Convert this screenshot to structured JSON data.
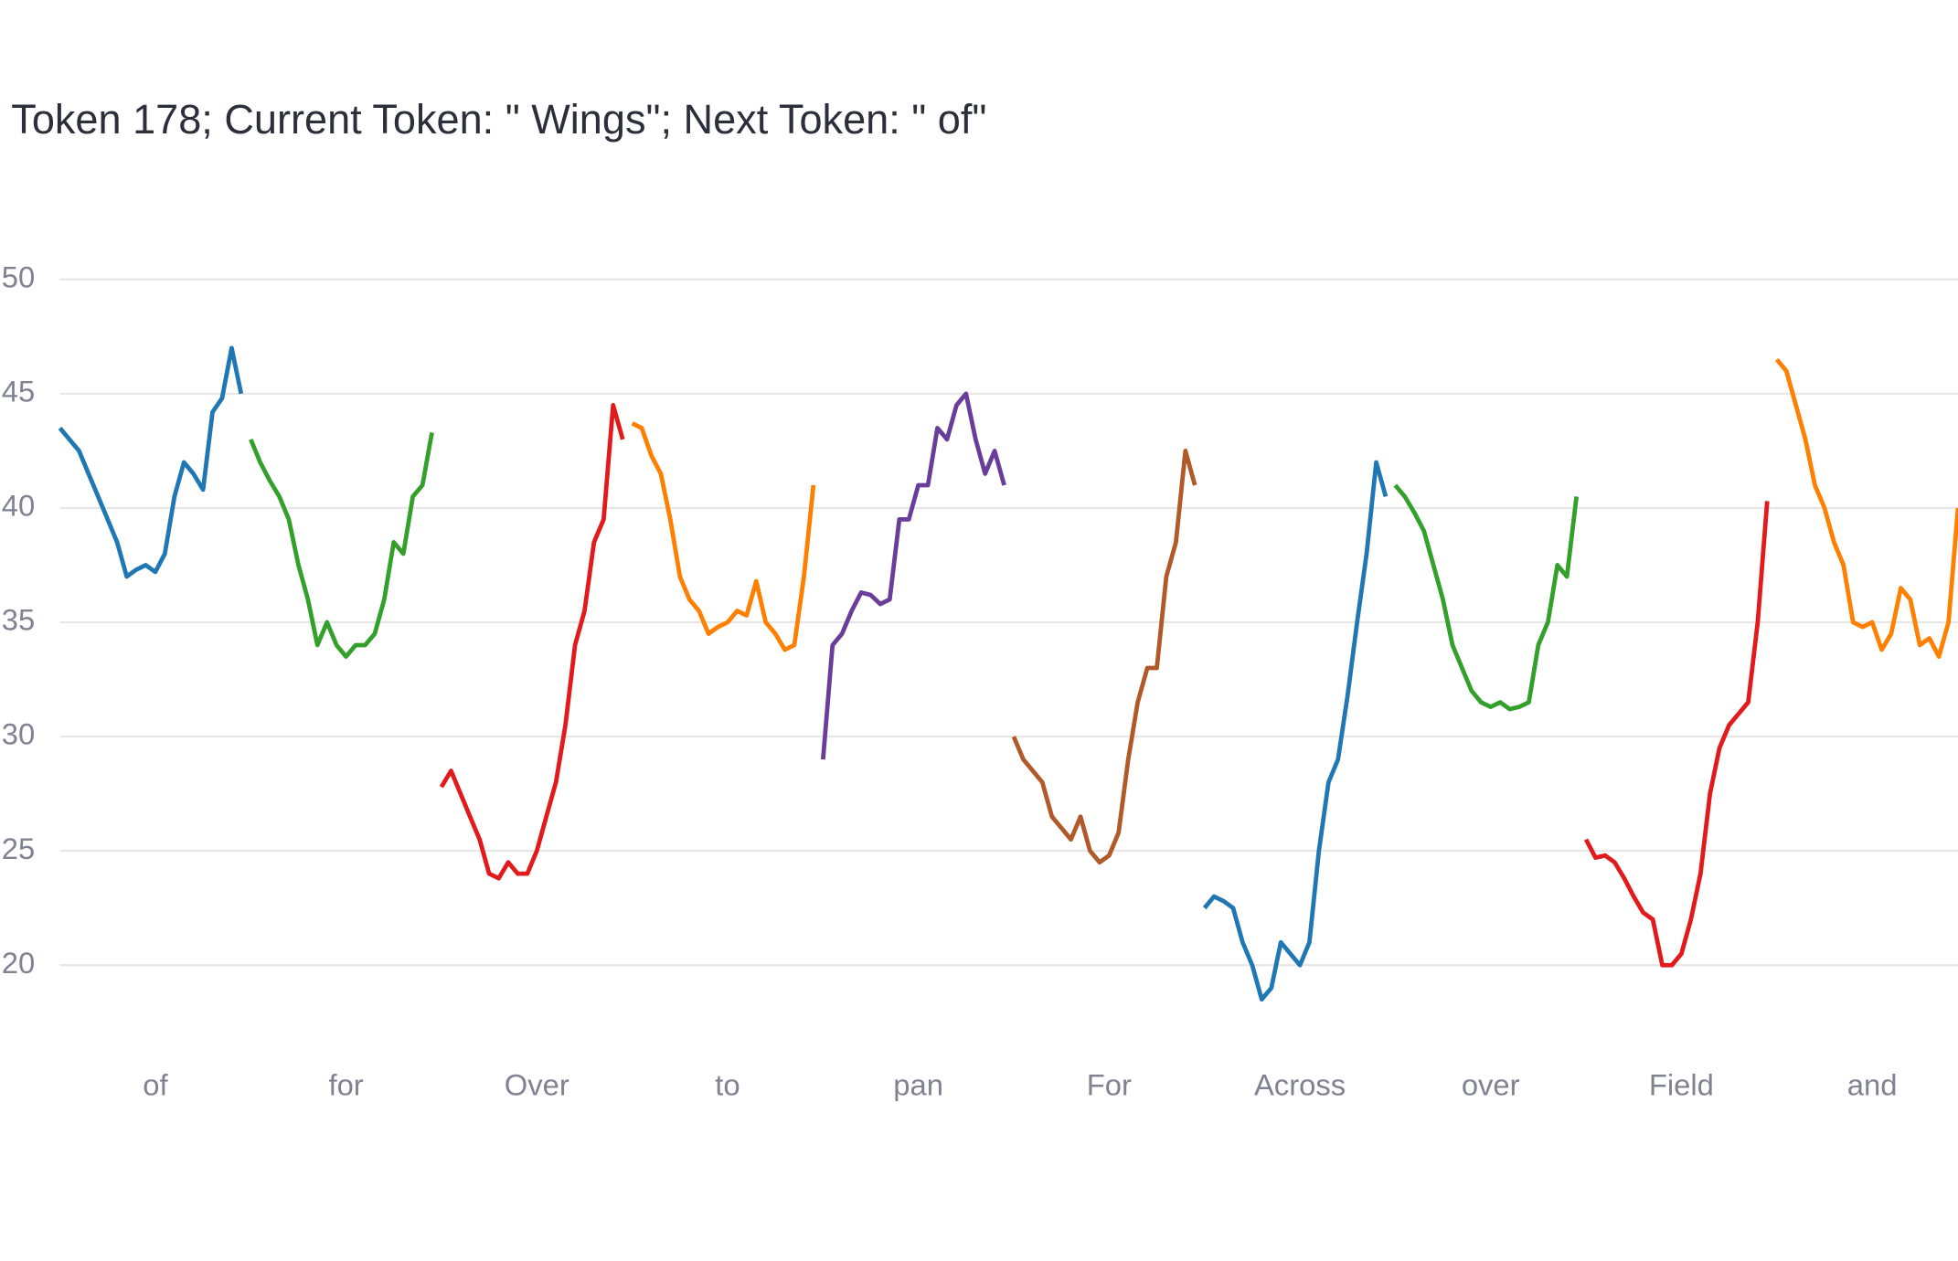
{
  "chart_data": {
    "type": "line",
    "title": "Token 178; Current Token: \" Wings\"; Next Token: \" of\"",
    "xlim": [
      0,
      398
    ],
    "ylim": [
      17,
      52.5
    ],
    "yticks": [
      20,
      25,
      30,
      35,
      40,
      45,
      50
    ],
    "xticks": [
      {
        "value": 20,
        "label": "of"
      },
      {
        "value": 60,
        "label": "for"
      },
      {
        "value": 100,
        "label": "Over"
      },
      {
        "value": 140,
        "label": "to"
      },
      {
        "value": 180,
        "label": "pan"
      },
      {
        "value": 220,
        "label": "For"
      },
      {
        "value": 260,
        "label": "Across"
      },
      {
        "value": 300,
        "label": "over"
      },
      {
        "value": 340,
        "label": "Field"
      },
      {
        "value": 380,
        "label": "and"
      }
    ],
    "grid": true,
    "series": [
      {
        "color": "#1f78b4",
        "x": [
          0,
          2,
          4,
          6,
          8,
          10,
          12,
          14,
          16,
          18,
          20,
          22,
          24,
          26,
          28,
          30,
          32,
          34,
          36,
          38
        ],
        "values": [
          43.5,
          43,
          42.5,
          41.5,
          40.5,
          39.5,
          38.5,
          37,
          37.3,
          37.5,
          37.2,
          38,
          40.5,
          42,
          41.5,
          40.8,
          44.2,
          44.8,
          47,
          45
        ]
      },
      {
        "color": "#33a02c",
        "x": [
          40,
          42,
          44,
          46,
          48,
          50,
          52,
          54,
          56,
          58,
          60,
          62,
          64,
          66,
          68,
          70,
          72,
          74,
          76,
          78
        ],
        "values": [
          43,
          42,
          41.2,
          40.5,
          39.5,
          37.5,
          36,
          34,
          35,
          34,
          33.5,
          34,
          34,
          34.5,
          36,
          38.5,
          38,
          40.5,
          41,
          43.3
        ]
      },
      {
        "color": "#e31a1c",
        "x": [
          80,
          82,
          84,
          86,
          88,
          90,
          92,
          94,
          96,
          98,
          100,
          102,
          104,
          106,
          108,
          110,
          112,
          114,
          116,
          118
        ],
        "values": [
          27.8,
          28.5,
          27.5,
          26.5,
          25.5,
          24,
          23.8,
          24.5,
          24,
          24,
          25,
          26.5,
          28,
          30.5,
          34,
          35.5,
          38.5,
          39.5,
          44.5,
          43
        ]
      },
      {
        "color": "#ff7f00",
        "x": [
          120,
          122,
          124,
          126,
          128,
          130,
          132,
          134,
          136,
          138,
          140,
          142,
          144,
          146,
          148,
          150,
          152,
          154,
          156,
          158
        ],
        "values": [
          43.7,
          43.5,
          42.3,
          41.5,
          39.5,
          37,
          36,
          35.5,
          34.5,
          34.8,
          35,
          35.5,
          35.3,
          36.8,
          35,
          34.5,
          33.8,
          34,
          37,
          41
        ]
      },
      {
        "color": "#6a3d9a",
        "x": [
          160,
          162,
          164,
          166,
          168,
          170,
          172,
          174,
          176,
          178,
          180,
          182,
          184,
          186,
          188,
          190,
          192,
          194,
          196,
          198
        ],
        "values": [
          29,
          34,
          34.5,
          35.5,
          36.3,
          36.2,
          35.8,
          36,
          39.5,
          39.5,
          41,
          41,
          43.5,
          43,
          44.5,
          45,
          43,
          41.5,
          42.5,
          41
        ]
      },
      {
        "color": "#b15928",
        "x": [
          200,
          202,
          204,
          206,
          208,
          210,
          212,
          214,
          216,
          218,
          220,
          222,
          224,
          226,
          228,
          230,
          232,
          234,
          236,
          238
        ],
        "values": [
          30,
          29,
          28.5,
          28,
          26.5,
          26,
          25.5,
          26.5,
          25,
          24.5,
          24.8,
          25.8,
          29,
          31.5,
          33,
          33,
          37,
          38.5,
          42.5,
          41
        ]
      },
      {
        "color": "#1f78b4",
        "x": [
          240,
          242,
          244,
          246,
          248,
          250,
          252,
          254,
          256,
          258,
          260,
          262,
          264,
          266,
          268,
          270,
          272,
          274,
          276,
          278
        ],
        "values": [
          22.5,
          23,
          22.8,
          22.5,
          21,
          20,
          18.5,
          19,
          21,
          20.5,
          20,
          21,
          25,
          28,
          29,
          31.8,
          35,
          38,
          42,
          40.5
        ]
      },
      {
        "color": "#33a02c",
        "x": [
          280,
          282,
          284,
          286,
          288,
          290,
          292,
          294,
          296,
          298,
          300,
          302,
          304,
          306,
          308,
          310,
          312,
          314,
          316,
          318
        ],
        "values": [
          41,
          40.5,
          39.8,
          39,
          37.5,
          36,
          34,
          33,
          32,
          31.5,
          31.3,
          31.5,
          31.2,
          31.3,
          31.5,
          34,
          35,
          37.5,
          37,
          40.5
        ]
      },
      {
        "color": "#e31a1c",
        "x": [
          320,
          322,
          324,
          326,
          328,
          330,
          332,
          334,
          336,
          338,
          340,
          342,
          344,
          346,
          348,
          350,
          352,
          354,
          356,
          358
        ],
        "values": [
          25.5,
          24.7,
          24.8,
          24.5,
          23.8,
          23,
          22.3,
          22,
          20,
          20,
          20.5,
          22,
          24,
          27.5,
          29.5,
          30.5,
          31,
          31.5,
          35,
          40.3
        ]
      },
      {
        "color": "#ff7f00",
        "x": [
          360,
          362,
          364,
          366,
          368,
          370,
          372,
          374,
          376,
          378,
          380,
          382,
          384,
          386,
          388,
          390,
          392,
          394,
          396,
          398
        ],
        "values": [
          46.5,
          46,
          44.5,
          43,
          41,
          40,
          38.5,
          37.5,
          35,
          34.8,
          35,
          33.8,
          34.5,
          36.5,
          36,
          34,
          34.3,
          33.5,
          35,
          40
        ]
      }
    ]
  }
}
